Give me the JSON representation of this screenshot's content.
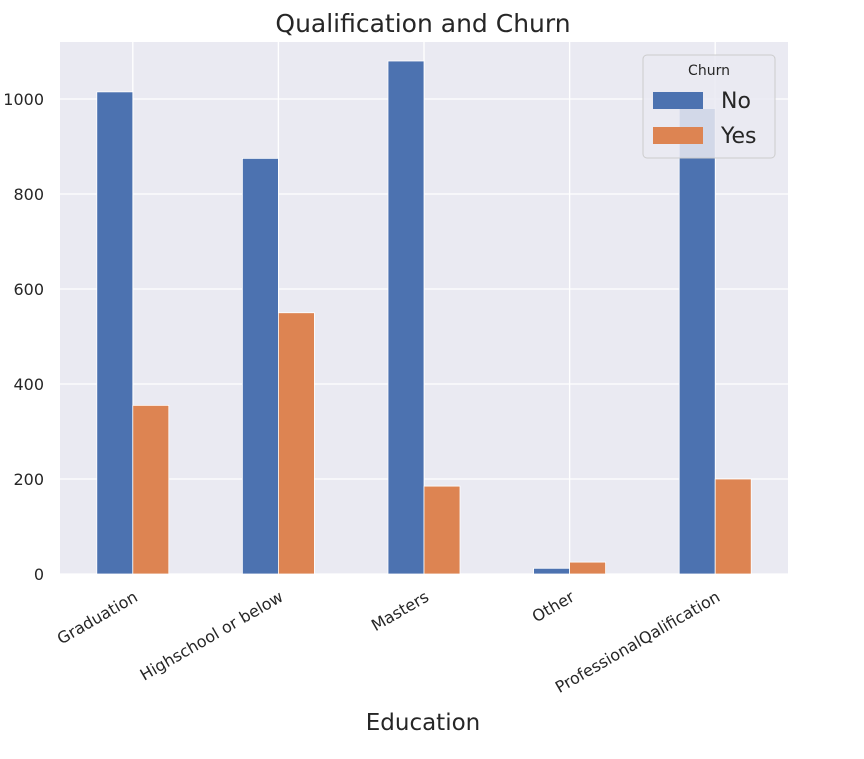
{
  "chart_data": {
    "type": "bar",
    "title": "Qualification and Churn",
    "xlabel": "Education",
    "ylabel": "",
    "categories": [
      "Graduation",
      "Highschool or below",
      "Masters",
      "Other",
      "ProfessionalQalification"
    ],
    "series": [
      {
        "name": "No",
        "values": [
          1015,
          875,
          1080,
          12,
          980
        ],
        "color": "#4c72b0"
      },
      {
        "name": "Yes",
        "values": [
          355,
          550,
          185,
          25,
          200
        ],
        "color": "#dd8452"
      }
    ],
    "ylim": [
      0,
      1120
    ],
    "yticks": [
      0,
      200,
      400,
      600,
      800,
      1000
    ],
    "grid": true,
    "legend": {
      "title": "Churn",
      "placement": "top-right"
    },
    "plot_background": "#eaeaf2"
  }
}
